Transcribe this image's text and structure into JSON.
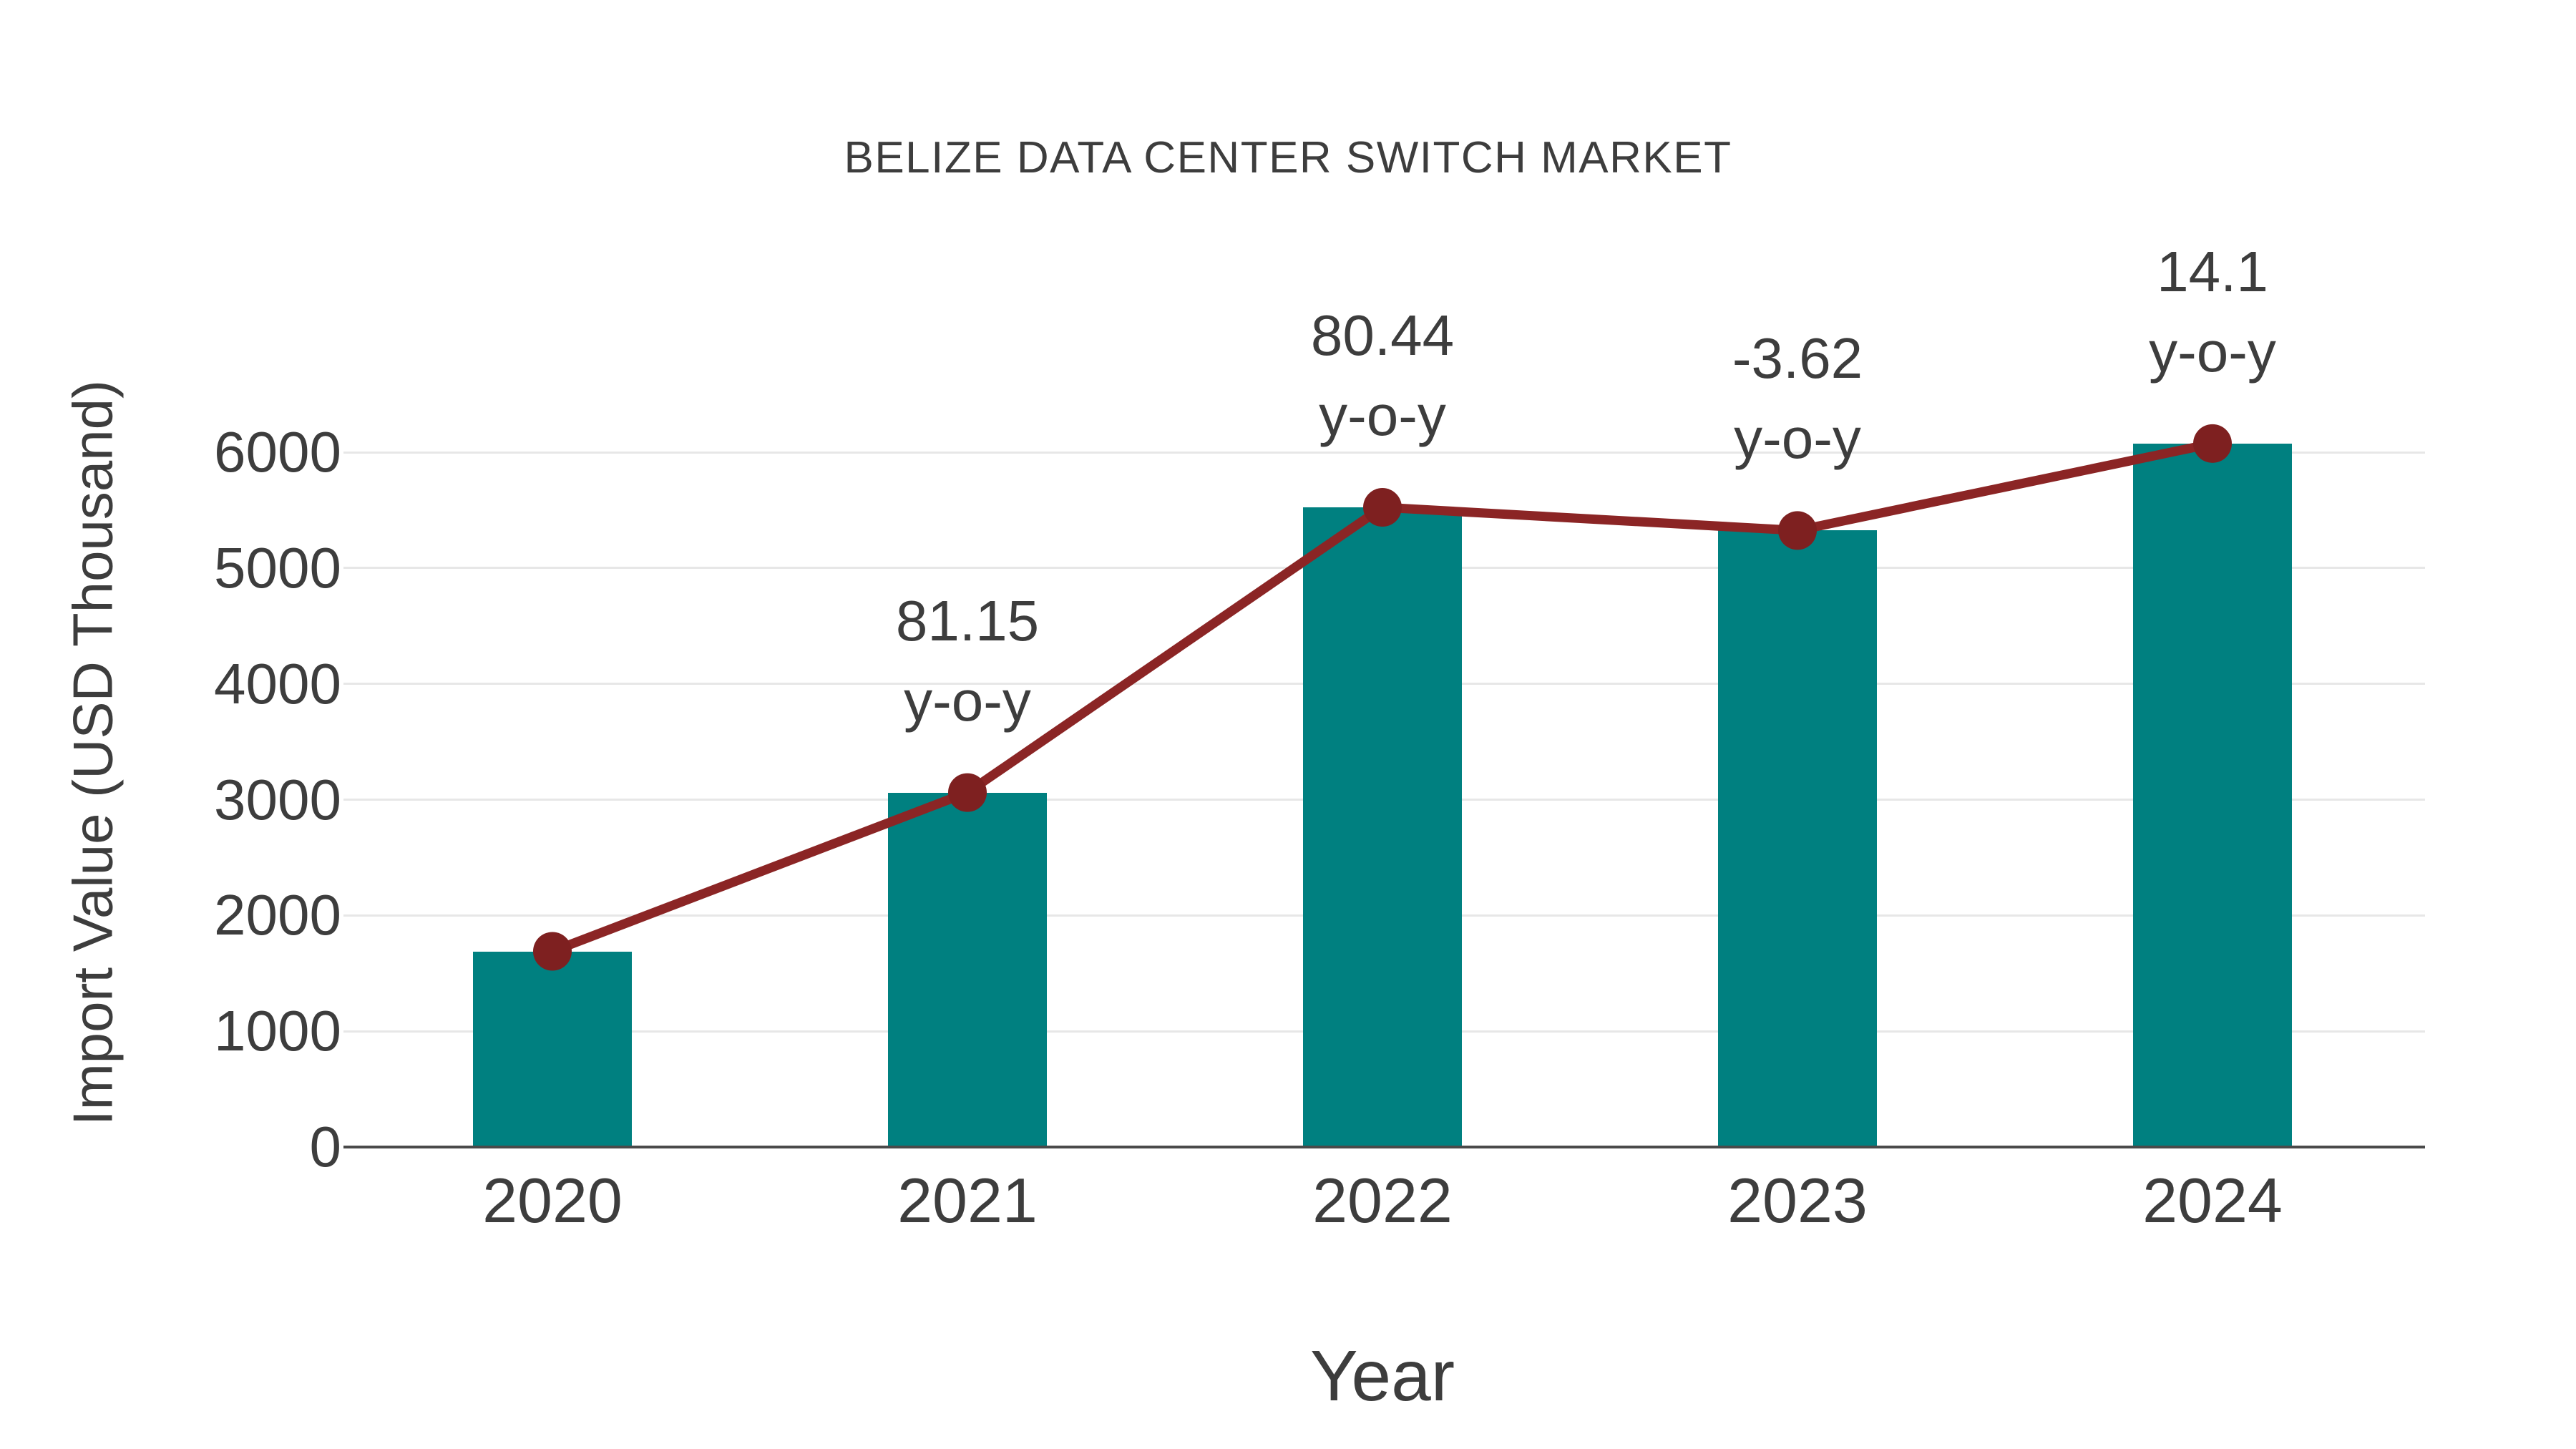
{
  "chart_data": {
    "type": "bar",
    "subtype": "bar-with-line-overlay",
    "title": "BELIZE DATA CENTER SWITCH MARKET",
    "xlabel": "Year",
    "ylabel": "Import Value (USD Thousand)",
    "categories": [
      "2020",
      "2021",
      "2022",
      "2023",
      "2024"
    ],
    "series": [
      {
        "name": "Import Value (USD Thousand)",
        "type": "bar",
        "color": "#008080",
        "values": [
          1690,
          3061,
          5524,
          5324,
          6075
        ]
      },
      {
        "name": "y-o-y",
        "type": "line",
        "color": "#8b2525",
        "marker_color": "#7e2020",
        "values": [
          1690,
          3061,
          5524,
          5324,
          6075
        ],
        "yoy_percent": [
          null,
          81.15,
          80.44,
          -3.62,
          14.1
        ]
      }
    ],
    "annotations": [
      {
        "category": "2021",
        "line1": "81.15",
        "line2": "y-o-y"
      },
      {
        "category": "2022",
        "line1": "80.44",
        "line2": "y-o-y"
      },
      {
        "category": "2023",
        "line1": "-3.62",
        "line2": "y-o-y"
      },
      {
        "category": "2024",
        "line1": "14.1",
        "line2": "y-o-y"
      }
    ],
    "yticks": [
      0,
      1000,
      2000,
      3000,
      4000,
      5000,
      6000
    ],
    "ylim": [
      0,
      6500
    ],
    "grid": true,
    "legend": "none",
    "colors": {
      "bar": "#008080",
      "line": "#8b2525",
      "marker": "#7e2020",
      "text": "#3d3d3d",
      "axis_line": "#4a4a4a",
      "gridline": "#e7e7e7",
      "background": "#ffffff"
    }
  }
}
